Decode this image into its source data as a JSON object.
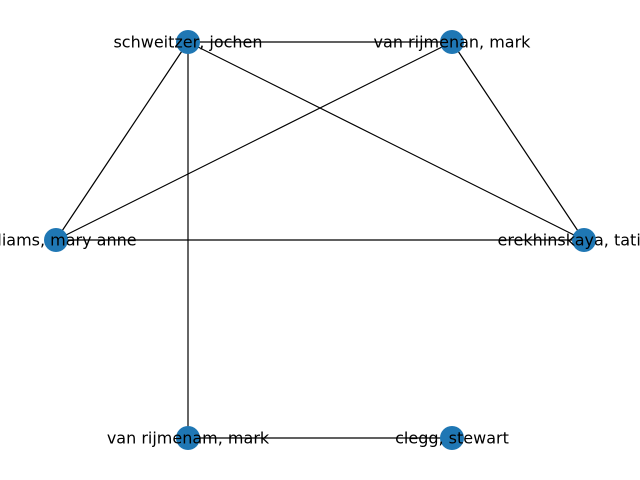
{
  "colors": {
    "node": "#1f77b4",
    "edge": "#000000",
    "label": "#000000",
    "background": "#ffffff"
  },
  "nodes": [
    {
      "id": "n1",
      "label": "schweitzer, jochen"
    },
    {
      "id": "n2",
      "label": "van rijmenan, mark"
    },
    {
      "id": "n3",
      "label": "williams, mary anne"
    },
    {
      "id": "n4",
      "label": "erekhinskaya, tatiana"
    },
    {
      "id": "n5",
      "label": "van rijmenam, mark"
    },
    {
      "id": "n6",
      "label": "clegg, stewart"
    }
  ],
  "edges": [
    [
      "n1",
      "n2"
    ],
    [
      "n1",
      "n3"
    ],
    [
      "n1",
      "n4"
    ],
    [
      "n1",
      "n5"
    ],
    [
      "n2",
      "n3"
    ],
    [
      "n2",
      "n4"
    ],
    [
      "n3",
      "n4"
    ],
    [
      "n5",
      "n6"
    ]
  ]
}
